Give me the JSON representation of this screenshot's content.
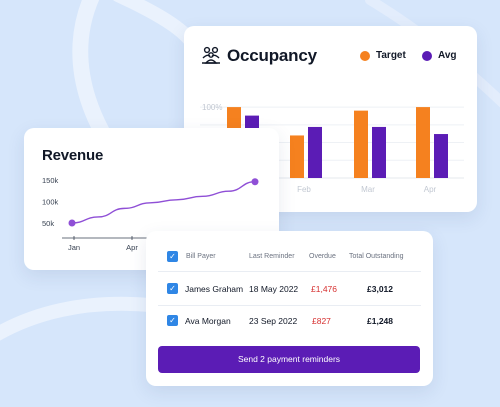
{
  "colors": {
    "background": "#d6e6fb",
    "target": "#f5811f",
    "avg": "#5b1cb5",
    "revenue_line": "#8f4fd6",
    "overdue": "#d62f2f",
    "checkbox": "#2f86e5",
    "button": "#5b1cb5"
  },
  "occupancy": {
    "title": "Occupancy",
    "icon": "people-group-icon",
    "legend": [
      {
        "label": "Target",
        "color": "#f5811f"
      },
      {
        "label": "Avg",
        "color": "#5b1cb5"
      }
    ]
  },
  "revenue": {
    "title": "Revenue"
  },
  "bills": {
    "columns": [
      "Bill Payer",
      "Last Reminder",
      "Overdue",
      "Total Outstanding"
    ],
    "header_checked": true,
    "rows": [
      {
        "checked": true,
        "payer": "James Graham",
        "last_reminder": "18 May 2022",
        "overdue": "£1,476",
        "total": "£3,012"
      },
      {
        "checked": true,
        "payer": "Ava Morgan",
        "last_reminder": "23 Sep 2022",
        "overdue": "£827",
        "total": "£1,248"
      }
    ],
    "button_label": "Send 2 payment reminders"
  },
  "chart_data": [
    {
      "type": "bar",
      "title": "Occupancy",
      "y_tick_labels": [
        "100%"
      ],
      "categories": [
        "Jan",
        "Feb",
        "Mar",
        "Apr"
      ],
      "category_labels_visible": [
        "",
        "Feb",
        "Mar",
        "Apr"
      ],
      "series": [
        {
          "name": "Target",
          "values": [
            100,
            60,
            95,
            100
          ]
        },
        {
          "name": "Avg",
          "values": [
            88,
            72,
            72,
            62
          ]
        }
      ],
      "ylim": [
        0,
        110
      ],
      "legend": "top-right",
      "grid": true
    },
    {
      "type": "line",
      "title": "Revenue",
      "y_tick_labels": [
        "150k",
        "100k",
        "50k"
      ],
      "x_tick_labels": [
        "Jan",
        "Apr"
      ],
      "x": [
        0,
        1,
        2,
        3,
        4,
        5,
        6,
        7
      ],
      "values": [
        50000,
        64000,
        84000,
        97000,
        104000,
        112000,
        124000,
        146000
      ],
      "ylim": [
        30000,
        160000
      ],
      "grid": false
    }
  ]
}
